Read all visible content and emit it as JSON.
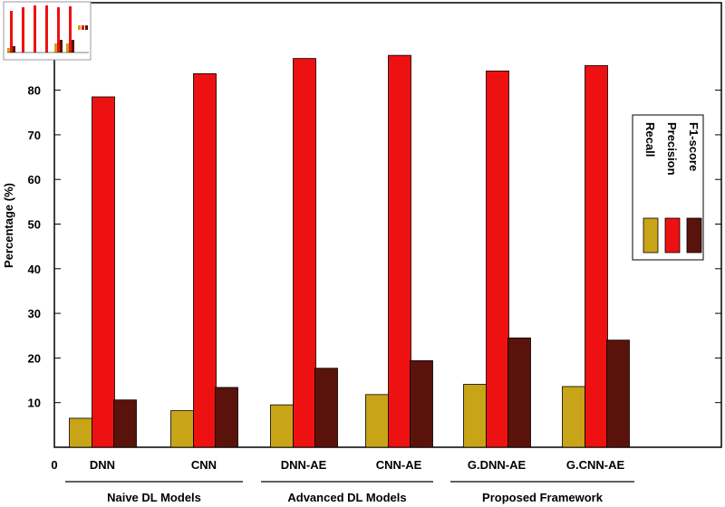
{
  "chart_data": {
    "type": "bar",
    "ylabel": "Percentage (%)",
    "ylim": [
      0,
      90
    ],
    "yticks": [
      0,
      10,
      20,
      30,
      40,
      50,
      60,
      70,
      80
    ],
    "categories": [
      "DNN",
      "CNN",
      "DNN-AE",
      "CNN-AE",
      "G.DNN-AE",
      "G.CNN-AE"
    ],
    "groups": [
      {
        "label": "Naive DL Models",
        "categories": [
          "DNN",
          "CNN"
        ]
      },
      {
        "label": "Advanced DL Models",
        "categories": [
          "DNN-AE",
          "CNN-AE"
        ]
      },
      {
        "label": "Proposed Framework",
        "categories": [
          "G.DNN-AE",
          "G.CNN-AE"
        ]
      }
    ],
    "series": [
      {
        "name": "Recall",
        "color": "#c8a418",
        "values": [
          6.5,
          8.2,
          9.5,
          11.8,
          14.1,
          13.6
        ]
      },
      {
        "name": "Precision",
        "color": "#ee1111",
        "values": [
          78.5,
          83.7,
          87.1,
          87.8,
          84.3,
          85.5
        ]
      },
      {
        "name": "F1-score",
        "color": "#5a130b",
        "values": [
          10.6,
          13.4,
          17.7,
          19.4,
          24.5,
          24.0
        ]
      }
    ],
    "legend_position": "right",
    "grid": false
  }
}
